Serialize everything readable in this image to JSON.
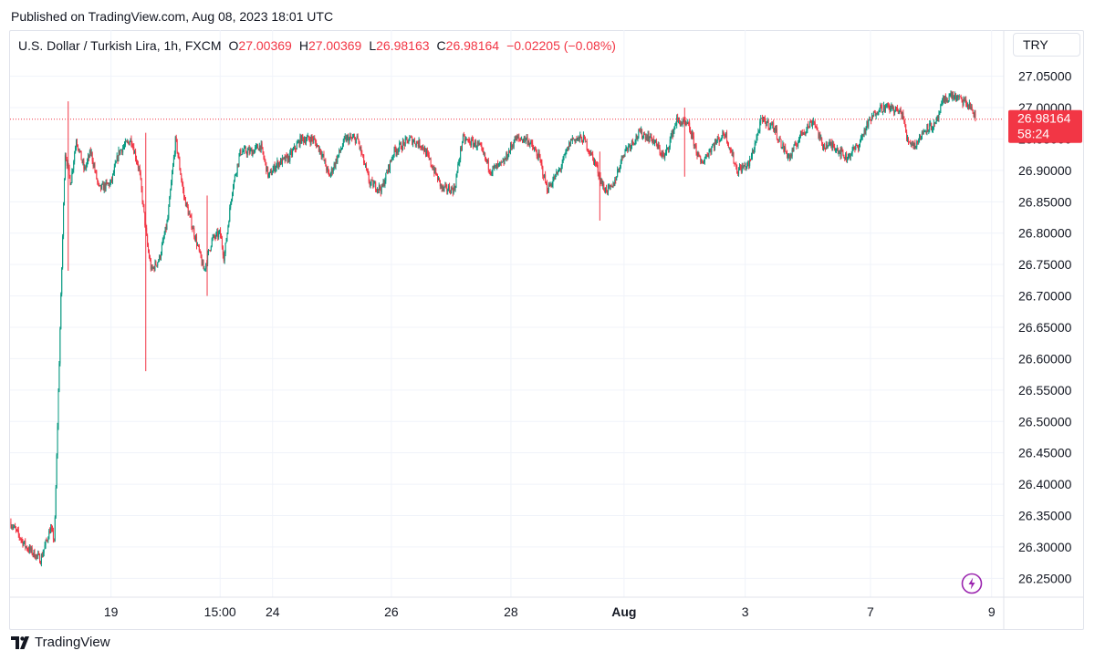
{
  "header": {
    "published": "Published on TradingView.com, Aug 08, 2023 18:01 UTC"
  },
  "legend": {
    "symbol": "U.S. Dollar / Turkish Lira, 1h, FXCM",
    "o_label": "O",
    "o_value": "27.00369",
    "h_label": "H",
    "h_value": "27.00369",
    "l_label": "L",
    "l_value": "26.98163",
    "c_label": "C",
    "c_value": "26.98164",
    "change": "−0.02205 (−0.08%)"
  },
  "currency_button": "TRY",
  "footer": {
    "brand": "TradingView"
  },
  "colors": {
    "up": "#089981",
    "down": "#f23645",
    "grid": "#f0f3fa",
    "axis_text": "#131722",
    "price_line": "#f23645"
  },
  "chart_data": {
    "type": "candlestick",
    "symbol": "USD/TRY",
    "interval": "1h",
    "y_ticks": [
      "26.25000",
      "26.30000",
      "26.35000",
      "26.40000",
      "26.45000",
      "26.50000",
      "26.55000",
      "26.60000",
      "26.65000",
      "26.70000",
      "26.75000",
      "26.80000",
      "26.85000",
      "26.90000",
      "26.95000",
      "27.00000",
      "27.05000"
    ],
    "x_ticks": [
      {
        "label": "19",
        "t": 1.25
      },
      {
        "label": "15:00",
        "t": 2.6
      },
      {
        "label": "24",
        "t": 3.25
      },
      {
        "label": "26",
        "t": 4.72
      },
      {
        "label": "28",
        "t": 6.2
      },
      {
        "label": "Aug",
        "t": 7.6
      },
      {
        "label": "3",
        "t": 9.1
      },
      {
        "label": "7",
        "t": 10.65
      },
      {
        "label": "9",
        "t": 12.15
      }
    ],
    "ylim": [
      26.22,
      27.08
    ],
    "xlim": [
      0,
      12.3
    ],
    "last_price": {
      "value": 26.98164,
      "label": "26.98164",
      "countdown": "58:24"
    },
    "anchors": [
      [
        0.0,
        26.34
      ],
      [
        0.2,
        26.3
      ],
      [
        0.38,
        26.28
      ],
      [
        0.5,
        26.33
      ],
      [
        0.55,
        26.31
      ],
      [
        0.62,
        26.65
      ],
      [
        0.68,
        26.93
      ],
      [
        0.75,
        26.88
      ],
      [
        0.82,
        26.95
      ],
      [
        0.92,
        26.9
      ],
      [
        1.0,
        26.93
      ],
      [
        1.1,
        26.87
      ],
      [
        1.25,
        26.88
      ],
      [
        1.35,
        26.93
      ],
      [
        1.5,
        26.95
      ],
      [
        1.6,
        26.9
      ],
      [
        1.7,
        26.78
      ],
      [
        1.75,
        26.74
      ],
      [
        1.85,
        26.76
      ],
      [
        1.95,
        26.82
      ],
      [
        2.05,
        26.95
      ],
      [
        2.15,
        26.86
      ],
      [
        2.3,
        26.79
      ],
      [
        2.4,
        26.74
      ],
      [
        2.5,
        26.79
      ],
      [
        2.6,
        26.8
      ],
      [
        2.65,
        26.76
      ],
      [
        2.75,
        26.87
      ],
      [
        2.85,
        26.93
      ],
      [
        3.0,
        26.93
      ],
      [
        3.1,
        26.94
      ],
      [
        3.2,
        26.89
      ],
      [
        3.3,
        26.91
      ],
      [
        3.45,
        26.92
      ],
      [
        3.6,
        26.95
      ],
      [
        3.75,
        26.95
      ],
      [
        3.85,
        26.93
      ],
      [
        3.95,
        26.89
      ],
      [
        4.15,
        26.95
      ],
      [
        4.3,
        26.95
      ],
      [
        4.45,
        26.88
      ],
      [
        4.6,
        26.87
      ],
      [
        4.75,
        26.93
      ],
      [
        4.95,
        26.95
      ],
      [
        5.1,
        26.94
      ],
      [
        5.25,
        26.9
      ],
      [
        5.35,
        26.87
      ],
      [
        5.5,
        26.87
      ],
      [
        5.6,
        26.95
      ],
      [
        5.8,
        26.94
      ],
      [
        5.95,
        26.9
      ],
      [
        6.1,
        26.91
      ],
      [
        6.25,
        26.95
      ],
      [
        6.4,
        26.95
      ],
      [
        6.55,
        26.92
      ],
      [
        6.65,
        26.87
      ],
      [
        6.8,
        26.9
      ],
      [
        6.95,
        26.95
      ],
      [
        7.1,
        26.95
      ],
      [
        7.25,
        26.91
      ],
      [
        7.35,
        26.87
      ],
      [
        7.45,
        26.87
      ],
      [
        7.6,
        26.93
      ],
      [
        7.8,
        26.96
      ],
      [
        7.95,
        26.95
      ],
      [
        8.1,
        26.92
      ],
      [
        8.25,
        26.98
      ],
      [
        8.4,
        26.97
      ],
      [
        8.55,
        26.91
      ],
      [
        8.7,
        26.94
      ],
      [
        8.85,
        26.96
      ],
      [
        9.0,
        26.9
      ],
      [
        9.15,
        26.91
      ],
      [
        9.3,
        26.98
      ],
      [
        9.45,
        26.97
      ],
      [
        9.55,
        26.94
      ],
      [
        9.65,
        26.92
      ],
      [
        9.8,
        26.96
      ],
      [
        9.95,
        26.98
      ],
      [
        10.05,
        26.94
      ],
      [
        10.2,
        26.94
      ],
      [
        10.35,
        26.92
      ],
      [
        10.5,
        26.94
      ],
      [
        10.6,
        26.97
      ],
      [
        10.75,
        27.0
      ],
      [
        10.9,
        27.0
      ],
      [
        11.05,
        26.99
      ],
      [
        11.1,
        26.95
      ],
      [
        11.2,
        26.94
      ],
      [
        11.35,
        26.97
      ],
      [
        11.45,
        26.97
      ],
      [
        11.55,
        27.01
      ],
      [
        11.65,
        27.02
      ],
      [
        11.8,
        27.01
      ],
      [
        11.9,
        27.0
      ],
      [
        11.95,
        26.98
      ]
    ],
    "spikes": [
      {
        "t": 0.72,
        "high": 27.01,
        "low": 26.74
      },
      {
        "t": 1.68,
        "high": 26.96,
        "low": 26.58
      },
      {
        "t": 2.44,
        "high": 26.86,
        "low": 26.7
      },
      {
        "t": 7.3,
        "high": 26.93,
        "low": 26.82
      },
      {
        "t": 8.35,
        "high": 27.0,
        "low": 26.89
      }
    ]
  }
}
